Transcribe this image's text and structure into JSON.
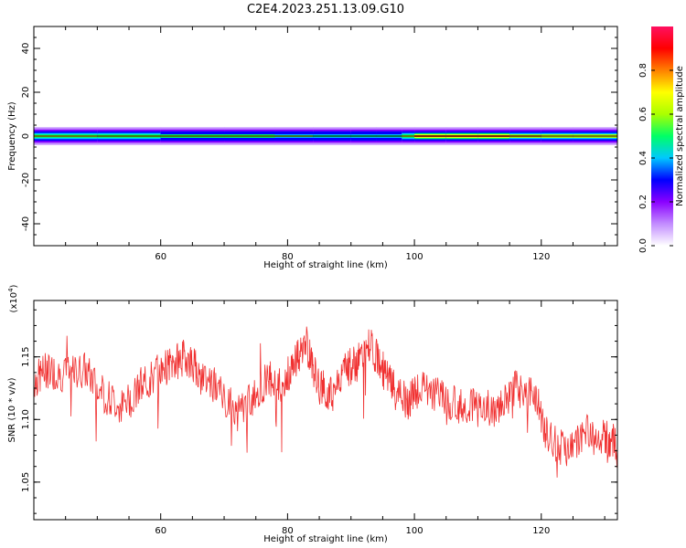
{
  "title": "C2E4.2023.251.13.09.G10",
  "chart_data": [
    {
      "type": "heatmap",
      "xlabel": "Height of straight line (km)",
      "ylabel": "Frequency (Hz)",
      "xlim": [
        40,
        132
      ],
      "ylim": [
        -50,
        50
      ],
      "x_ticks": [
        60,
        80,
        100,
        120
      ],
      "y_ticks": [
        -40,
        -20,
        0,
        20,
        40
      ],
      "colorbar": {
        "label": "Normalized spectral amplitude",
        "range": [
          0,
          1
        ],
        "ticks": [
          0.0,
          0.2,
          0.4,
          0.6,
          0.8
        ],
        "colormap": [
          "#ffffff",
          "#c28cff",
          "#8a00ff",
          "#0000ff",
          "#00c8ff",
          "#00ff66",
          "#aaff00",
          "#ffff00",
          "#ff8000",
          "#ff0000",
          "#ff1060"
        ]
      },
      "band_profile": [
        {
          "x": 40,
          "peak": 0.65
        },
        {
          "x": 50,
          "peak": 0.68
        },
        {
          "x": 60,
          "peak": 0.6
        },
        {
          "x": 70,
          "peak": 0.62
        },
        {
          "x": 78,
          "peak": 0.6
        },
        {
          "x": 84,
          "peak": 0.5
        },
        {
          "x": 90,
          "peak": 0.45
        },
        {
          "x": 94,
          "peak": 0.55
        },
        {
          "x": 98,
          "peak": 0.5
        },
        {
          "x": 100,
          "peak": 0.85
        },
        {
          "x": 105,
          "peak": 0.92
        },
        {
          "x": 110,
          "peak": 0.9
        },
        {
          "x": 115,
          "peak": 0.85
        },
        {
          "x": 120,
          "peak": 0.7
        },
        {
          "x": 125,
          "peak": 0.72
        },
        {
          "x": 132,
          "peak": 0.75
        }
      ]
    },
    {
      "type": "line",
      "xlabel": "Height of straight line (km)",
      "ylabel": "SNR (10 * v/v)",
      "y_multiplier": "(x10",
      "y_multiplier_exp": "4",
      "y_multiplier_close": ")",
      "xlim": [
        40,
        132
      ],
      "ylim": [
        1.02,
        1.195
      ],
      "x_ticks": [
        60,
        80,
        100,
        120
      ],
      "y_ticks": [
        1.05,
        1.1,
        1.15
      ],
      "y_tick_labels": [
        "1.05",
        "1.10",
        "1.15"
      ],
      "series": [
        {
          "color": "#f03030",
          "x": [
            40,
            42,
            45,
            48,
            51,
            54,
            57,
            60,
            62,
            64,
            66,
            69,
            72,
            75,
            77,
            79,
            81,
            83,
            85,
            87,
            89,
            91,
            93,
            95,
            97,
            99,
            101,
            104,
            107,
            110,
            113,
            116,
            119,
            121,
            124,
            127,
            130,
            132
          ],
          "y": [
            1.13,
            1.14,
            1.135,
            1.14,
            1.12,
            1.11,
            1.125,
            1.14,
            1.145,
            1.15,
            1.14,
            1.125,
            1.105,
            1.12,
            1.135,
            1.125,
            1.145,
            1.16,
            1.125,
            1.12,
            1.14,
            1.145,
            1.16,
            1.14,
            1.12,
            1.115,
            1.125,
            1.12,
            1.11,
            1.115,
            1.105,
            1.125,
            1.12,
            1.085,
            1.075,
            1.09,
            1.085,
            1.08
          ]
        }
      ]
    }
  ]
}
